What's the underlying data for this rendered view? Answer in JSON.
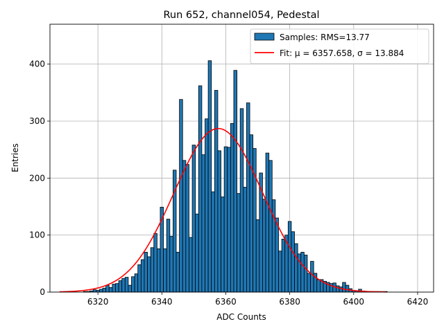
{
  "chart_data": {
    "type": "bar",
    "title": "Run 652, channel054, Pedestal",
    "xlabel": "ADC Counts",
    "ylabel": "Entries",
    "xlim": [
      6305,
      6425
    ],
    "ylim": [
      0,
      470
    ],
    "xticks": [
      6320,
      6340,
      6360,
      6380,
      6400,
      6420
    ],
    "yticks": [
      0,
      100,
      200,
      300,
      400
    ],
    "grid": true,
    "legend_position": "top-right",
    "bin_width": 1,
    "histogram": {
      "name": "Samples: RMS=13.77",
      "color": "#1f77b4",
      "x": [
        6316,
        6317,
        6318,
        6319,
        6320,
        6321,
        6322,
        6323,
        6324,
        6325,
        6326,
        6327,
        6328,
        6329,
        6330,
        6331,
        6332,
        6333,
        6334,
        6335,
        6336,
        6337,
        6338,
        6339,
        6340,
        6341,
        6342,
        6343,
        6344,
        6345,
        6346,
        6347,
        6348,
        6349,
        6350,
        6351,
        6352,
        6353,
        6354,
        6355,
        6356,
        6357,
        6358,
        6359,
        6360,
        6361,
        6362,
        6363,
        6364,
        6365,
        6366,
        6367,
        6368,
        6369,
        6370,
        6371,
        6372,
        6373,
        6374,
        6375,
        6376,
        6377,
        6378,
        6379,
        6380,
        6381,
        6382,
        6383,
        6384,
        6385,
        6386,
        6387,
        6388,
        6389,
        6390,
        6391,
        6392,
        6393,
        6394,
        6395,
        6396,
        6397,
        6398,
        6399,
        6400,
        6401,
        6402,
        6403,
        6404,
        6405,
        6406,
        6407,
        6408,
        6409,
        6410
      ],
      "values": [
        1,
        1,
        2,
        4,
        3,
        5,
        7,
        12,
        8,
        14,
        15,
        20,
        24,
        26,
        12,
        27,
        32,
        48,
        57,
        70,
        62,
        78,
        103,
        76,
        149,
        76,
        128,
        98,
        214,
        70,
        338,
        231,
        224,
        96,
        258,
        137,
        362,
        241,
        304,
        406,
        176,
        354,
        248,
        167,
        255,
        254,
        296,
        389,
        173,
        322,
        184,
        332,
        276,
        252,
        127,
        209,
        163,
        244,
        231,
        162,
        130,
        72,
        93,
        100,
        124,
        106,
        85,
        67,
        70,
        65,
        33,
        54,
        33,
        22,
        22,
        19,
        17,
        15,
        16,
        11,
        9,
        17,
        12,
        6,
        3,
        2,
        5,
        2,
        1,
        1,
        1,
        1,
        1,
        1,
        1
      ]
    },
    "fit": {
      "name": "Fit: μ = 6357.658, σ = 13.884",
      "color": "#ff0000",
      "mu": 6357.658,
      "sigma": 13.884,
      "amplitude": 287,
      "x_range": [
        6308,
        6410
      ]
    }
  }
}
